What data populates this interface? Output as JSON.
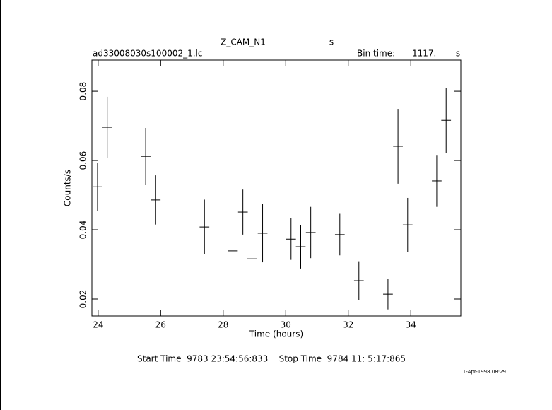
{
  "chart_data": {
    "type": "errorbar",
    "title": "Z_CAM_N1",
    "title_unit": "s",
    "subtitle": "ad33008030s100002_1.lc",
    "bin_time_label": "Bin time:",
    "bin_time": {
      "value": 1117,
      "label": "1117."
    },
    "bin_time_unit": "s",
    "x_label": "Time (hours)",
    "y_label": "Counts/s",
    "footer": "Start Time  9783 23:54:56:833    Stop Time  9784 11: 5:17:865",
    "date": "1-Apr-1998 08:29",
    "xlim": [
      23.8,
      35.6
    ],
    "xticks": [
      24,
      26,
      28,
      30,
      32,
      34
    ],
    "ylim": [
      0.0151,
      0.089
    ],
    "yticks": [
      0.02,
      0.04,
      0.06,
      0.08
    ],
    "color": "#000000",
    "x": [
      23.98,
      24.29,
      25.52,
      25.84,
      27.4,
      28.31,
      28.63,
      28.92,
      29.26,
      30.17,
      30.48,
      30.8,
      31.73,
      32.34,
      33.27,
      33.59,
      33.9,
      34.83,
      35.13
    ],
    "values": [
      0.0524,
      0.0696,
      0.0612,
      0.0486,
      0.0408,
      0.0339,
      0.0451,
      0.0316,
      0.039,
      0.0373,
      0.0351,
      0.0392,
      0.0386,
      0.0253,
      0.0214,
      0.0641,
      0.0414,
      0.0541,
      0.0716
    ],
    "errors": [
      0.0069,
      0.0088,
      0.0082,
      0.0071,
      0.0079,
      0.0073,
      0.0065,
      0.0056,
      0.0084,
      0.006,
      0.0063,
      0.0074,
      0.006,
      0.0056,
      0.0044,
      0.0108,
      0.0078,
      0.0075,
      0.0094
    ]
  }
}
